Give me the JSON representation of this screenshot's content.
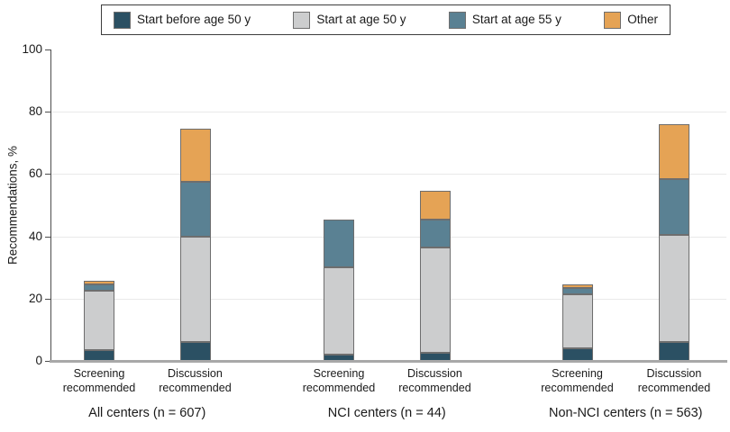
{
  "chart_data": {
    "type": "bar",
    "stacked": true,
    "title": "",
    "ylabel": "Recommendations, %",
    "ylim": [
      0,
      100
    ],
    "yticks": [
      0,
      20,
      40,
      60,
      80,
      100
    ],
    "grid": "horizontal, light gray at 20/40/60/80",
    "legend_position": "top, boxed",
    "series": [
      {
        "name": "Start before age 50 y",
        "color": "#2b5063"
      },
      {
        "name": "Start at age 50 y",
        "color": "#cccdce"
      },
      {
        "name": "Start at age 55 y",
        "color": "#5a8193"
      },
      {
        "name": "Other",
        "color": "#e5a355"
      }
    ],
    "bar_labels": [
      "Screening recommended",
      "Discussion recommended"
    ],
    "groups": [
      {
        "label": "All centers (n = 607)",
        "bars": [
          {
            "label": "Screening recommended",
            "values": [
              3.5,
              19.0,
              2.0,
              1.3
            ],
            "total": 25.8
          },
          {
            "label": "Discussion recommended",
            "values": [
              6.0,
              34.0,
              17.5,
              17.0
            ],
            "total": 74.5
          }
        ]
      },
      {
        "label": "NCI centers (n = 44)",
        "bars": [
          {
            "label": "Screening recommended",
            "values": [
              2.0,
              28.0,
              15.5,
              0.0
            ],
            "total": 45.5
          },
          {
            "label": "Discussion recommended",
            "values": [
              2.5,
              34.0,
              9.0,
              9.0
            ],
            "total": 54.5
          }
        ]
      },
      {
        "label": "Non-NCI centers (n = 563)",
        "bars": [
          {
            "label": "Screening recommended",
            "values": [
              4.0,
              17.5,
              2.0,
              1.0
            ],
            "total": 24.5
          },
          {
            "label": "Discussion recommended",
            "values": [
              6.0,
              34.5,
              18.0,
              17.5
            ],
            "total": 76.0
          }
        ]
      }
    ],
    "colors": {
      "segment_border": "#6e6e6e",
      "baseline": "#a8a8a8",
      "gridline": "#e9e9e9",
      "axis": "#4d4d4d",
      "text": "#1a1a1a"
    }
  }
}
